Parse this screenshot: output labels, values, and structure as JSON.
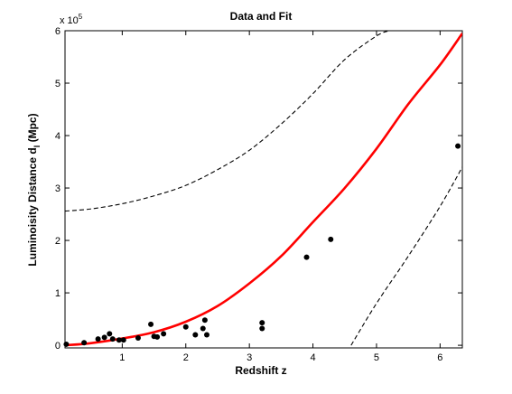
{
  "chart_data": {
    "type": "scatter",
    "title": "Data and Fit",
    "xlabel": "Redshift z",
    "ylabel_main": "Luminoisity Distance d",
    "ylabel_sub": "l",
    "ylabel_unit": " (Mpc)",
    "exponent_label_base": "x 10",
    "exponent_label_power": "5",
    "xlim": [
      0.1,
      6.35
    ],
    "ylim": [
      -0.05,
      6.0
    ],
    "y_scale_factor": 100000,
    "grid": false,
    "legend": "none",
    "xticks": [
      {
        "value": 1,
        "label": "1"
      },
      {
        "value": 2,
        "label": "2"
      },
      {
        "value": 3,
        "label": "3"
      },
      {
        "value": 4,
        "label": "4"
      },
      {
        "value": 5,
        "label": "5"
      },
      {
        "value": 6,
        "label": "6"
      }
    ],
    "yticks": [
      {
        "value": 0,
        "label": "0"
      },
      {
        "value": 1,
        "label": "1"
      },
      {
        "value": 2,
        "label": "2"
      },
      {
        "value": 3,
        "label": "3"
      },
      {
        "value": 4,
        "label": "4"
      },
      {
        "value": 5,
        "label": "5"
      },
      {
        "value": 6,
        "label": "6"
      }
    ],
    "points": {
      "color": "#000000",
      "x": [
        0.12,
        0.4,
        0.62,
        0.72,
        0.8,
        0.85,
        0.95,
        1.02,
        1.25,
        1.45,
        1.5,
        1.55,
        1.65,
        2.0,
        2.15,
        2.27,
        2.3,
        2.33,
        3.2,
        3.2,
        3.9,
        4.28,
        6.28
      ],
      "y": [
        0.02,
        0.05,
        0.12,
        0.15,
        0.22,
        0.12,
        0.1,
        0.1,
        0.14,
        0.4,
        0.17,
        0.16,
        0.22,
        0.35,
        0.2,
        0.32,
        0.48,
        0.2,
        0.43,
        0.32,
        1.68,
        2.02,
        3.8
      ]
    },
    "fit_curve": {
      "color": "#ff0000",
      "x": [
        0.1,
        0.5,
        1.0,
        1.5,
        2.0,
        2.5,
        3.0,
        3.5,
        4.0,
        4.5,
        5.0,
        5.5,
        6.0,
        6.35
      ],
      "y": [
        0.0,
        0.04,
        0.13,
        0.25,
        0.45,
        0.75,
        1.18,
        1.7,
        2.35,
        3.0,
        3.75,
        4.6,
        5.35,
        5.95
      ]
    },
    "upper_bound": {
      "color": "#000000",
      "style": "dashed",
      "x": [
        0.1,
        0.5,
        1.0,
        1.5,
        2.0,
        2.5,
        3.0,
        3.5,
        4.0,
        4.5,
        5.0,
        5.2
      ],
      "y": [
        2.56,
        2.6,
        2.7,
        2.85,
        3.05,
        3.35,
        3.72,
        4.22,
        4.8,
        5.45,
        5.9,
        6.0
      ]
    },
    "lower_bound": {
      "color": "#000000",
      "style": "dashed",
      "x": [
        4.6,
        5.0,
        5.5,
        6.0,
        6.35
      ],
      "y": [
        0.0,
        0.8,
        1.7,
        2.65,
        3.4
      ]
    }
  }
}
